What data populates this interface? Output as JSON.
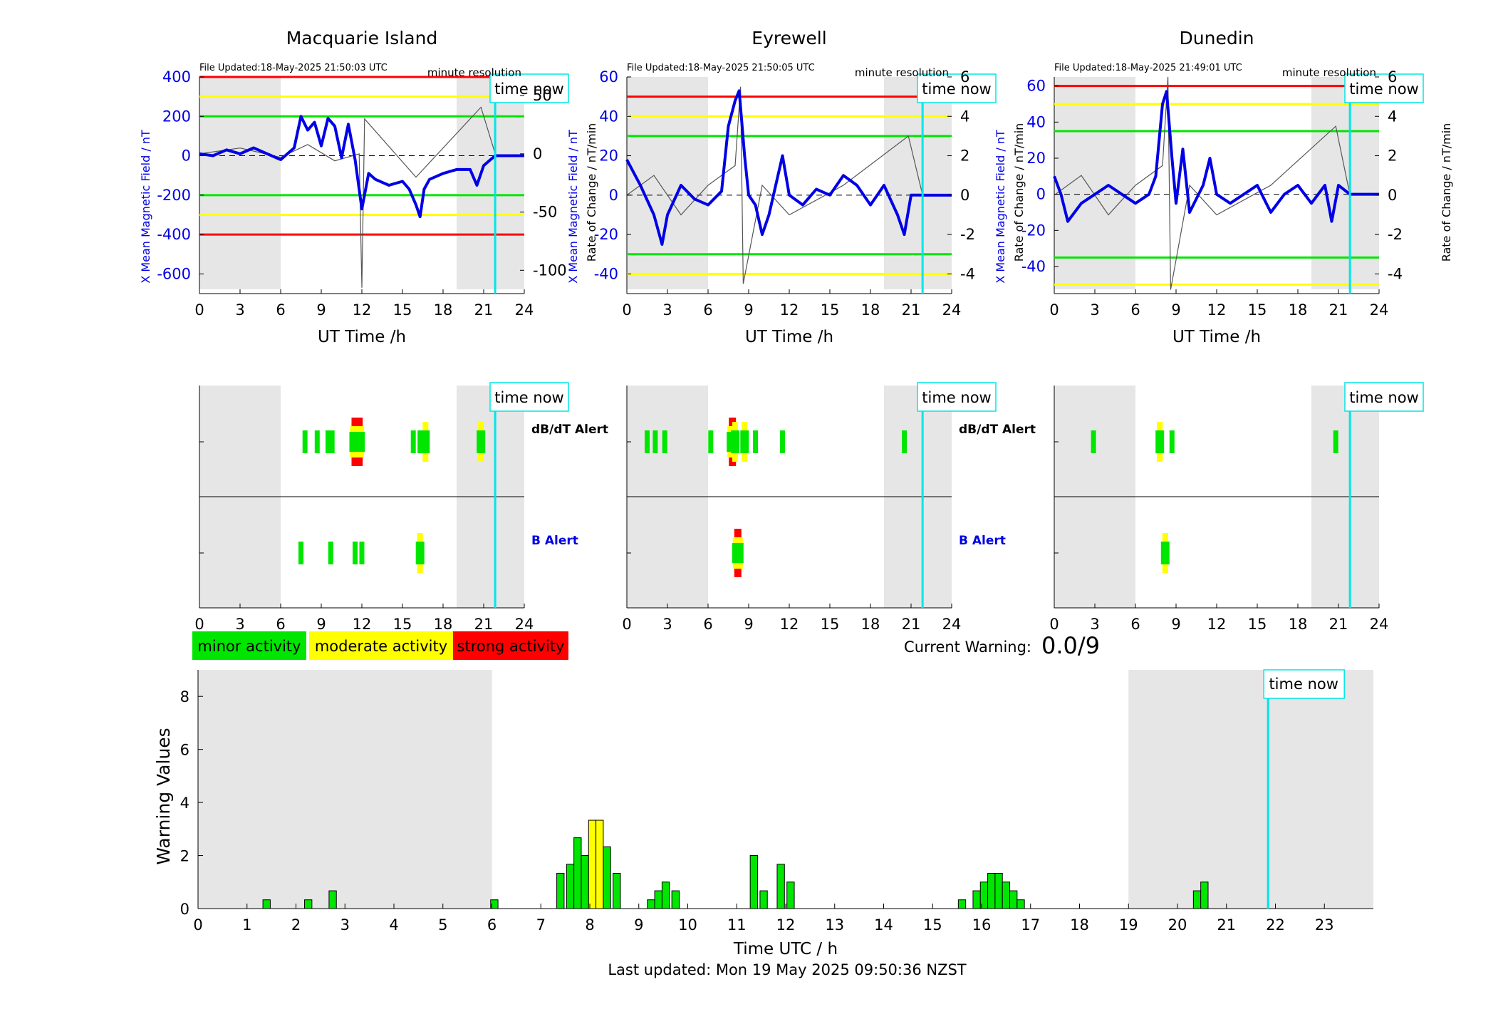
{
  "colors": {
    "minor": "#00e600",
    "moderate": "#ffff00",
    "strong": "#ff0000",
    "line": "#0000e6",
    "time_now": "#00e6e6",
    "shade": "#e6e6e6"
  },
  "panels": [
    {
      "station": "Macquarie Island",
      "file_updated": "File Updated:18-May-2025 21:50:03 UTC",
      "resolution_label": "minute resolution",
      "ylabel_left": "X Mean Magnetic Field / nT",
      "ylabel_right": "Rate of Change / nT/min",
      "xlabel": "UT Time /h",
      "left_ticks": [
        "400",
        "200",
        "0",
        "-200",
        "-400",
        "-600"
      ],
      "right_ticks": [
        "50",
        "0",
        "-50",
        "-100"
      ],
      "dbdt_label": "dB/dT Alert",
      "b_label": "B Alert"
    },
    {
      "station": "Eyrewell",
      "file_updated": "File Updated:18-May-2025 21:50:05 UTC",
      "resolution_label": "minute resolution",
      "ylabel_left": "X Mean Magnetic Field / nT",
      "ylabel_right": "Rate of Change / nT/min",
      "xlabel": "UT Time /h",
      "left_ticks": [
        "60",
        "40",
        "20",
        "0",
        "-20",
        "-40"
      ],
      "right_ticks": [
        "6",
        "4",
        "2",
        "0",
        "-2",
        "-4"
      ],
      "dbdt_label": "dB/dT Alert",
      "b_label": "B Alert"
    },
    {
      "station": "Dunedin",
      "file_updated": "File Updated:18-May-2025 21:49:01 UTC",
      "resolution_label": "minute resolution",
      "ylabel_left": "X Mean Magnetic Field / nT",
      "ylabel_right": "Rate of Change / nT/min",
      "xlabel": "UT Time /h",
      "left_ticks": [
        "60",
        "40",
        "20",
        "0",
        "-20",
        "-40"
      ],
      "right_ticks": [
        "6",
        "4",
        "2",
        "0",
        "-2",
        "-4"
      ],
      "dbdt_label": "",
      "b_label": ""
    }
  ],
  "time_now_label": "time now",
  "hour_ticks_panel": [
    "0",
    "3",
    "6",
    "9",
    "12",
    "15",
    "18",
    "21",
    "24"
  ],
  "legend": {
    "minor": "minor activity",
    "moderate": "moderate activity",
    "strong": "strong activity"
  },
  "current_warning": {
    "label": "Current Warning:",
    "value": "0.0/9"
  },
  "warning_chart": {
    "ylabel": "Warning Values",
    "xlabel": "Time UTC / h",
    "y_ticks": [
      "0",
      "2",
      "4",
      "6",
      "8"
    ],
    "x_ticks": [
      "0",
      "1",
      "2",
      "3",
      "4",
      "5",
      "6",
      "7",
      "8",
      "9",
      "10",
      "11",
      "12",
      "13",
      "14",
      "15",
      "16",
      "17",
      "18",
      "19",
      "20",
      "21",
      "22",
      "23"
    ]
  },
  "footer": "Last updated: Mon 19 May 2025 09:50:36 NZST",
  "chart_data": [
    {
      "type": "line",
      "title": "Macquarie Island",
      "xlabel": "UT Time /h",
      "ylabel": "X Mean Magnetic Field / nT",
      "y2label": "Rate of Change / nT/min",
      "xlim": [
        0,
        24
      ],
      "ylim": [
        -700,
        400
      ],
      "y2lim": [
        -120,
        66
      ],
      "grid": false,
      "shaded_night_hours": [
        [
          0,
          6
        ],
        [
          19,
          24
        ]
      ],
      "time_now": 21.85,
      "thresholds": {
        "minor": [
          200,
          -200
        ],
        "moderate": [
          300,
          -300
        ],
        "strong": [
          400,
          -400
        ]
      },
      "series": [
        {
          "name": "X Mean Magnetic Field",
          "x": [
            0,
            1,
            2,
            3,
            4,
            5,
            6,
            7,
            7.5,
            8,
            8.5,
            9,
            9.5,
            10,
            10.5,
            11,
            11.5,
            12,
            12.5,
            13,
            14,
            15,
            15.5,
            16,
            16.3,
            16.6,
            17,
            18,
            19,
            20,
            20.5,
            21,
            21.5,
            21.85
          ],
          "y": [
            10,
            0,
            30,
            10,
            40,
            10,
            -20,
            40,
            200,
            130,
            170,
            50,
            190,
            150,
            -10,
            160,
            -20,
            -270,
            -90,
            -120,
            -150,
            -130,
            -170,
            -250,
            -310,
            -170,
            -120,
            -90,
            -70,
            -70,
            -150,
            -50,
            -20,
            0
          ]
        },
        {
          "name": "Rate of Change",
          "x": [
            0,
            3,
            6,
            8,
            10,
            11.8,
            12,
            12.2,
            16,
            20.8,
            21.85
          ],
          "y": [
            0,
            5,
            -3,
            8,
            -6,
            0,
            -115,
            30,
            -20,
            40,
            0
          ]
        }
      ]
    },
    {
      "type": "line",
      "title": "Eyrewell",
      "xlabel": "UT Time /h",
      "ylabel": "X Mean Magnetic Field / nT",
      "y2label": "Rate of Change / nT/min",
      "xlim": [
        0,
        24
      ],
      "ylim": [
        -50,
        60
      ],
      "y2lim": [
        -5,
        6
      ],
      "grid": false,
      "shaded_night_hours": [
        [
          0,
          6
        ],
        [
          19,
          24
        ]
      ],
      "time_now": 21.85,
      "thresholds": {
        "minor": [
          30,
          -30
        ],
        "moderate": [
          40,
          -40
        ],
        "strong": [
          50
        ]
      },
      "series": [
        {
          "name": "X Mean Magnetic Field",
          "x": [
            0,
            1,
            2,
            2.6,
            3,
            4,
            5,
            6,
            7,
            7.5,
            8,
            8.3,
            8.7,
            9,
            9.5,
            10,
            10.5,
            11,
            11.5,
            12,
            13,
            14,
            15,
            16,
            17,
            18,
            19,
            20,
            20.5,
            21,
            21.85
          ],
          "y": [
            18,
            5,
            -10,
            -25,
            -10,
            5,
            -2,
            -5,
            2,
            35,
            48,
            53,
            20,
            0,
            -5,
            -20,
            -10,
            5,
            20,
            0,
            -5,
            3,
            0,
            10,
            5,
            -5,
            5,
            -10,
            -20,
            0,
            0
          ]
        },
        {
          "name": "Rate of Change",
          "x": [
            0,
            2,
            4,
            6,
            8,
            8.4,
            8.6,
            10,
            12,
            16,
            20.8,
            21.85
          ],
          "y": [
            0,
            1,
            -1,
            0.5,
            1.5,
            5.5,
            -4.5,
            0.5,
            -1,
            0.5,
            3,
            0
          ]
        }
      ]
    },
    {
      "type": "line",
      "title": "Dunedin",
      "xlabel": "UT Time /h",
      "ylabel": "X Mean Magnetic Field / nT",
      "y2label": "Rate of Change / nT/min",
      "xlim": [
        0,
        24
      ],
      "ylim": [
        -55,
        65
      ],
      "y2lim": [
        -5,
        6
      ],
      "grid": false,
      "shaded_night_hours": [
        [
          0,
          6
        ],
        [
          19,
          24
        ]
      ],
      "time_now": 21.85,
      "thresholds": {
        "minor": [
          35,
          -35
        ],
        "moderate": [
          50,
          -50
        ],
        "strong": [
          60
        ]
      },
      "series": [
        {
          "name": "X Mean Magnetic Field",
          "x": [
            0,
            0.5,
            1,
            2,
            3,
            4,
            5,
            6,
            7,
            7.5,
            8,
            8.3,
            8.7,
            9,
            9.5,
            10,
            11,
            11.5,
            12,
            13,
            14,
            15,
            16,
            17,
            18,
            19,
            20,
            20.5,
            21,
            21.85
          ],
          "y": [
            10,
            0,
            -15,
            -5,
            0,
            5,
            0,
            -5,
            0,
            10,
            50,
            57,
            20,
            -5,
            25,
            -10,
            5,
            20,
            0,
            -5,
            0,
            5,
            -10,
            0,
            5,
            -5,
            5,
            -15,
            5,
            0
          ]
        },
        {
          "name": "Rate of Change",
          "x": [
            0,
            2,
            4,
            6,
            8,
            8.4,
            8.6,
            10,
            12,
            16,
            20.8,
            21.85
          ],
          "y": [
            0,
            1,
            -1,
            0.5,
            1.5,
            6,
            -4.8,
            0.5,
            -1,
            0.5,
            3.5,
            0
          ]
        }
      ]
    },
    {
      "type": "alert_timeline",
      "title": "dB/dT Alert",
      "xlim": [
        0,
        24
      ],
      "stations": [
        {
          "station": "Macquarie Island",
          "bars": [
            {
              "x": 7.8,
              "level": "minor"
            },
            {
              "x": 8.7,
              "level": "minor"
            },
            {
              "x": 9.5,
              "level": "minor"
            },
            {
              "x": 9.8,
              "level": "minor"
            },
            {
              "x": 11.5,
              "level": "strong"
            },
            {
              "x": 11.8,
              "level": "strong"
            },
            {
              "x": 15.8,
              "level": "minor"
            },
            {
              "x": 16.3,
              "level": "minor"
            },
            {
              "x": 16.7,
              "level": "moderate"
            },
            {
              "x": 20.8,
              "level": "moderate"
            }
          ]
        },
        {
          "station": "Eyrewell",
          "bars": [
            {
              "x": 1.5,
              "level": "minor"
            },
            {
              "x": 2.1,
              "level": "minor"
            },
            {
              "x": 2.8,
              "level": "minor"
            },
            {
              "x": 6.2,
              "level": "minor"
            },
            {
              "x": 7.8,
              "level": "strong"
            },
            {
              "x": 8.0,
              "level": "moderate"
            },
            {
              "x": 8.7,
              "level": "moderate"
            },
            {
              "x": 9.5,
              "level": "minor"
            },
            {
              "x": 11.5,
              "level": "minor"
            },
            {
              "x": 20.5,
              "level": "minor"
            }
          ]
        },
        {
          "station": "Dunedin",
          "bars": [
            {
              "x": 2.9,
              "level": "minor"
            },
            {
              "x": 7.8,
              "level": "moderate"
            },
            {
              "x": 8.7,
              "level": "minor"
            },
            {
              "x": 20.8,
              "level": "minor"
            }
          ]
        }
      ]
    },
    {
      "type": "alert_timeline",
      "title": "B Alert",
      "xlim": [
        0,
        24
      ],
      "stations": [
        {
          "station": "Macquarie Island",
          "bars": [
            {
              "x": 7.5,
              "level": "minor"
            },
            {
              "x": 9.7,
              "level": "minor"
            },
            {
              "x": 11.5,
              "level": "minor"
            },
            {
              "x": 12.0,
              "level": "minor"
            },
            {
              "x": 16.3,
              "level": "moderate"
            }
          ]
        },
        {
          "station": "Eyrewell",
          "bars": [
            {
              "x": 8.2,
              "level": "strong"
            }
          ]
        },
        {
          "station": "Dunedin",
          "bars": [
            {
              "x": 8.2,
              "level": "moderate"
            }
          ]
        }
      ]
    },
    {
      "type": "bar",
      "title": "",
      "xlabel": "Time UTC / h",
      "ylabel": "Warning Values",
      "xlim": [
        0,
        24
      ],
      "ylim": [
        0,
        9
      ],
      "shaded_night_hours": [
        [
          0,
          6
        ],
        [
          19,
          24
        ]
      ],
      "time_now": 21.85,
      "bars": [
        {
          "x": 1.4,
          "value": 0.33,
          "level": "minor"
        },
        {
          "x": 2.25,
          "value": 0.33,
          "level": "minor"
        },
        {
          "x": 2.75,
          "value": 0.67,
          "level": "minor"
        },
        {
          "x": 6.05,
          "value": 0.33,
          "level": "minor"
        },
        {
          "x": 7.4,
          "value": 1.33,
          "level": "minor"
        },
        {
          "x": 7.6,
          "value": 1.67,
          "level": "minor"
        },
        {
          "x": 7.75,
          "value": 2.67,
          "level": "minor"
        },
        {
          "x": 7.9,
          "value": 2.0,
          "level": "minor"
        },
        {
          "x": 8.05,
          "value": 3.33,
          "level": "moderate"
        },
        {
          "x": 8.2,
          "value": 3.33,
          "level": "moderate"
        },
        {
          "x": 8.35,
          "value": 2.33,
          "level": "minor"
        },
        {
          "x": 8.55,
          "value": 1.33,
          "level": "minor"
        },
        {
          "x": 9.25,
          "value": 0.33,
          "level": "minor"
        },
        {
          "x": 9.4,
          "value": 0.67,
          "level": "minor"
        },
        {
          "x": 9.55,
          "value": 1.0,
          "level": "minor"
        },
        {
          "x": 9.75,
          "value": 0.67,
          "level": "minor"
        },
        {
          "x": 11.35,
          "value": 2.0,
          "level": "minor"
        },
        {
          "x": 11.55,
          "value": 0.67,
          "level": "minor"
        },
        {
          "x": 11.9,
          "value": 1.67,
          "level": "minor"
        },
        {
          "x": 12.1,
          "value": 1.0,
          "level": "minor"
        },
        {
          "x": 15.6,
          "value": 0.33,
          "level": "minor"
        },
        {
          "x": 15.9,
          "value": 0.67,
          "level": "minor"
        },
        {
          "x": 16.05,
          "value": 1.0,
          "level": "minor"
        },
        {
          "x": 16.2,
          "value": 1.33,
          "level": "minor"
        },
        {
          "x": 16.35,
          "value": 1.33,
          "level": "minor"
        },
        {
          "x": 16.5,
          "value": 1.0,
          "level": "minor"
        },
        {
          "x": 16.65,
          "value": 0.67,
          "level": "minor"
        },
        {
          "x": 16.8,
          "value": 0.33,
          "level": "minor"
        },
        {
          "x": 20.4,
          "value": 0.67,
          "level": "minor"
        },
        {
          "x": 20.55,
          "value": 1.0,
          "level": "minor"
        }
      ]
    }
  ]
}
